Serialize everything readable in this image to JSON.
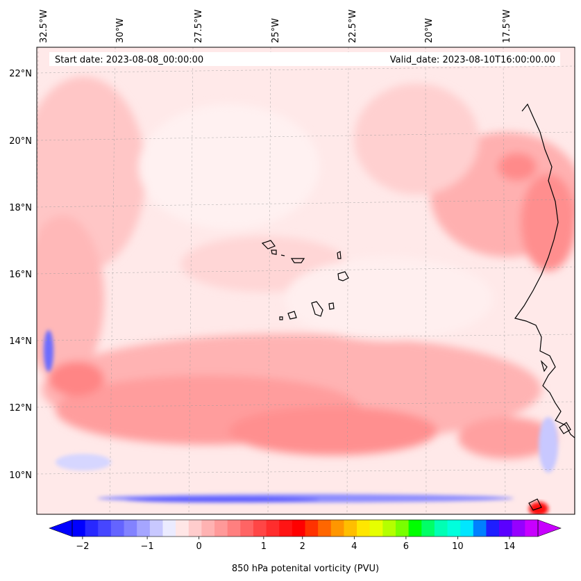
{
  "map": {
    "header": {
      "start_date": "Start date: 2023-08-08_00:00:00",
      "valid_date": "Valid_date: 2023-08-10T16:00:00.00"
    },
    "lon_labels": [
      "32.5°W",
      "30°W",
      "27.5°W",
      "25°W",
      "22.5°W",
      "20°W",
      "17.5°W"
    ],
    "lat_labels": [
      "22°N",
      "20°N",
      "18°N",
      "16°N",
      "14°N",
      "12°N",
      "10°N"
    ],
    "gridlines": "dashed"
  },
  "colorbar": {
    "label": "850 hPa potenital vorticity (PVU)",
    "ticks": [
      "−2",
      "−1",
      "0",
      "1",
      "2",
      "4",
      "6",
      "10",
      "14"
    ],
    "colors": [
      "#0000ff",
      "#2828ff",
      "#4646ff",
      "#6464ff",
      "#8282ff",
      "#a5a5ff",
      "#c8c8ff",
      "#ebebff",
      "#ffe6e6",
      "#ffcccc",
      "#ffb2b2",
      "#ff9999",
      "#ff7f7f",
      "#ff6464",
      "#ff4646",
      "#ff2d2d",
      "#ff1414",
      "#ff0000",
      "#ff3200",
      "#ff6600",
      "#ff9600",
      "#ffbe00",
      "#ffe600",
      "#e6ff00",
      "#b4ff00",
      "#78ff00",
      "#00ff00",
      "#00ff66",
      "#00ffb4",
      "#00ffdc",
      "#00e6ff",
      "#0080ff",
      "#1e1eff",
      "#5a00ff",
      "#9600ff",
      "#c800ff"
    ],
    "extend": "both"
  }
}
